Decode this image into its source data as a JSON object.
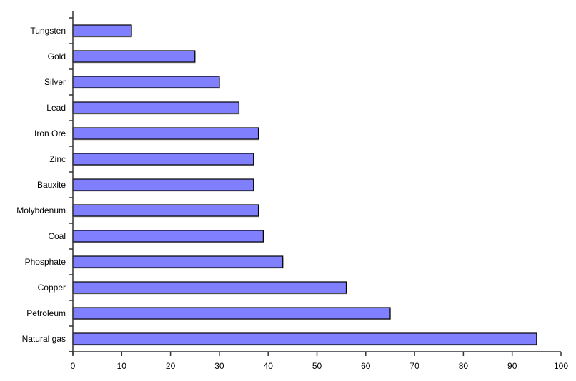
{
  "chart_data": {
    "type": "bar",
    "orientation": "horizontal",
    "categories": [
      "Tungsten",
      "Gold",
      "Silver",
      "Lead",
      "Iron Ore",
      "Zinc",
      "Bauxite",
      "Molybdenum",
      "Coal",
      "Phosphate",
      "Copper",
      "Petroleum",
      "Natural gas"
    ],
    "values": [
      12,
      25,
      30,
      34,
      38,
      37,
      37,
      38,
      39,
      43,
      56,
      65,
      95
    ],
    "xlim": [
      0,
      100
    ],
    "xticks": [
      0,
      10,
      20,
      30,
      40,
      50,
      60,
      70,
      80,
      90,
      100
    ],
    "title": "",
    "xlabel": "",
    "ylabel": "",
    "grid": false,
    "legend": "none",
    "bar_color": "#8080ff",
    "bar_edge_color": "#000000"
  }
}
